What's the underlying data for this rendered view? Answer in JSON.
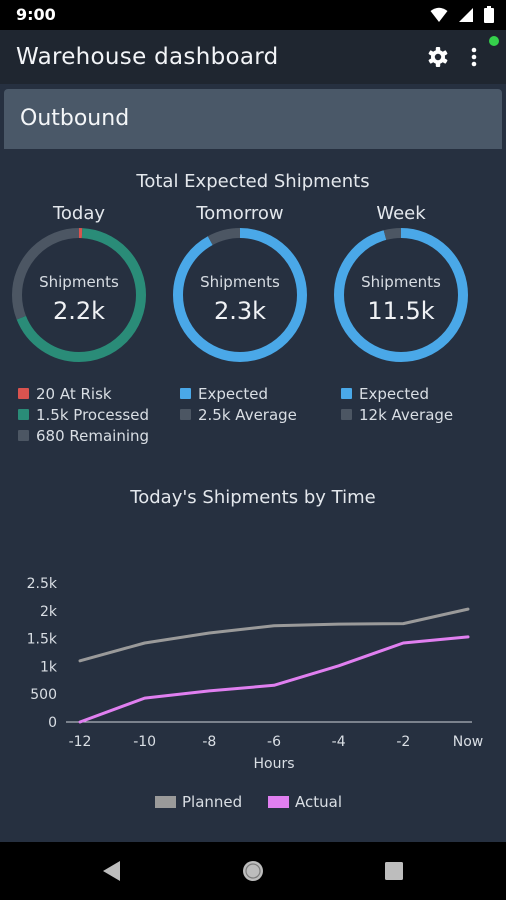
{
  "status_bar": {
    "time": "9:00"
  },
  "app_bar": {
    "title": "Warehouse dashboard"
  },
  "card": {
    "title": "Outbound"
  },
  "total_section": {
    "title": "Total Expected Shipments"
  },
  "donuts": [
    {
      "period": "Today",
      "inner_label": "Shipments",
      "value": "2.2k",
      "segments": [
        {
          "fraction": 0.008,
          "color": "#d9534f"
        },
        {
          "fraction": 0.682,
          "color": "#2a8c78"
        },
        {
          "fraction": 0.31,
          "color": "#4c5663"
        }
      ],
      "legend": [
        {
          "text": "20 At Risk",
          "color": "#d9534f"
        },
        {
          "text": "1.5k Processed",
          "color": "#2a8c78"
        },
        {
          "text": "680 Remaining",
          "color": "#4c5663"
        }
      ]
    },
    {
      "period": "Tomorrow",
      "inner_label": "Shipments",
      "value": "2.3k",
      "segments": [
        {
          "fraction": 0.92,
          "color": "#4aa8e8"
        },
        {
          "fraction": 0.08,
          "color": "#4c5663"
        }
      ],
      "legend": [
        {
          "text": "Expected",
          "color": "#4aa8e8"
        },
        {
          "text": "2.5k Average",
          "color": "#4c5663"
        }
      ]
    },
    {
      "period": "Week",
      "inner_label": "Shipments",
      "value": "11.5k",
      "segments": [
        {
          "fraction": 0.958,
          "color": "#4aa8e8"
        },
        {
          "fraction": 0.042,
          "color": "#4c5663"
        }
      ],
      "legend": [
        {
          "text": "Expected",
          "color": "#4aa8e8"
        },
        {
          "text": "12k Average",
          "color": "#4c5663"
        }
      ]
    }
  ],
  "time_section": {
    "title": "Today's Shipments by Time"
  },
  "chart_data": {
    "type": "line",
    "title": "Today's Shipments by Time",
    "xlabel": "Hours",
    "ylabel": "",
    "x": [
      -12,
      -10,
      -8,
      -6,
      -4,
      -2,
      0
    ],
    "x_tick_labels": [
      "-12",
      "-10",
      "-8",
      "-6",
      "-4",
      "-2",
      "Now"
    ],
    "y_tick_labels": [
      "0",
      "500",
      "1k",
      "1.5k",
      "2k",
      "2.5k"
    ],
    "y_ticks": [
      0,
      500,
      1000,
      1500,
      2000,
      2500
    ],
    "ylim": [
      0,
      2500
    ],
    "xlim": [
      -12,
      0
    ],
    "series": [
      {
        "name": "Planned",
        "color": "#9a9a9a",
        "values": [
          1100,
          1420,
          1600,
          1730,
          1760,
          1770,
          2030
        ]
      },
      {
        "name": "Actual",
        "color": "#e07ff0",
        "values": [
          0,
          430,
          560,
          660,
          1010,
          1420,
          1530
        ]
      }
    ],
    "legend_position": "bottom",
    "grid": false
  },
  "colors": {
    "background": "#263040",
    "app_bar": "#1f2630",
    "card_header": "#4a5868",
    "accent_blue": "#4aa8e8",
    "processed_green": "#2a8c78",
    "risk_red": "#d9534f"
  }
}
